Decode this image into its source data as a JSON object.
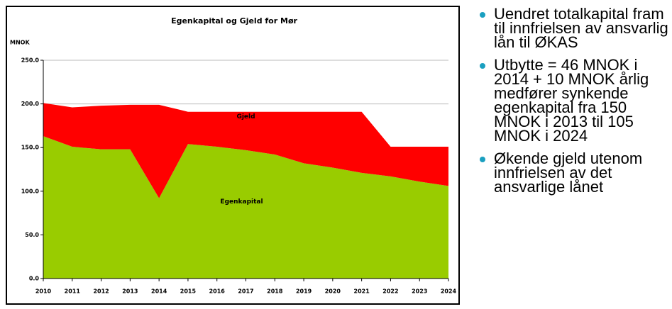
{
  "chart_data": {
    "type": "area",
    "title": "Egenkapital og Gjeld for Mør",
    "ylabel": "MNOK",
    "categories": [
      "2010",
      "2011",
      "2012",
      "2013",
      "2014",
      "2015",
      "2016",
      "2017",
      "2018",
      "2019",
      "2020",
      "2021",
      "2022",
      "2023",
      "2024"
    ],
    "stacked": true,
    "series": [
      {
        "name": "Egenkapital",
        "color": "#99cc00",
        "values": [
          163,
          151,
          148,
          148,
          92,
          154,
          151,
          147,
          142,
          132,
          127,
          121,
          117,
          111,
          106
        ]
      },
      {
        "name": "Gjeld",
        "color": "#ff0000",
        "values": [
          38,
          45,
          50,
          51,
          107,
          37,
          40,
          44,
          49,
          59,
          64,
          70,
          34,
          40,
          45
        ]
      }
    ],
    "ylim": [
      0,
      250
    ],
    "yticks": [
      {
        "value": 0,
        "label": "0.0"
      },
      {
        "value": 50,
        "label": "50.0"
      },
      {
        "value": 100,
        "label": "100.0"
      },
      {
        "value": 150,
        "label": "150.0"
      },
      {
        "value": 200,
        "label": "200.0"
      },
      {
        "value": 250,
        "label": "250.0"
      }
    ],
    "grid": true
  },
  "bullets": [
    "Uendret totalkapital fram til innfrielsen av ansvarlig lån til ØKAS",
    "Utbytte = 46 MNOK i 2014 + 10 MNOK årlig medfører synkende egenkapital fra 150 MNOK i 2013 til 105 MNOK i 2024",
    "Økende gjeld utenom innfrielsen av det ansvarlige lånet"
  ]
}
